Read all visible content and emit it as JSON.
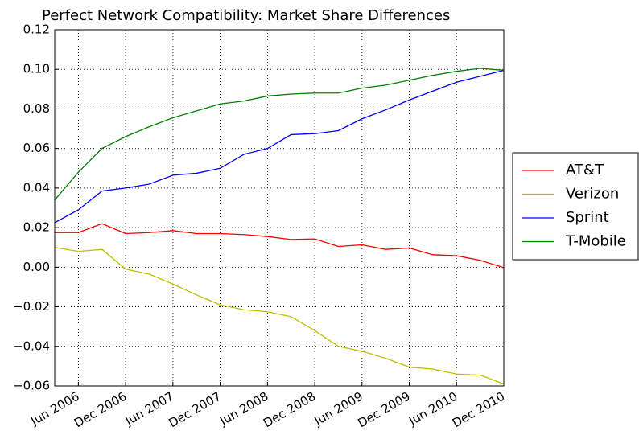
{
  "chart_data": {
    "type": "line",
    "title": "Perfect Network Compatibility: Market Share Differences",
    "x": [
      "2006-03",
      "2006-06",
      "2006-09",
      "2006-12",
      "2007-03",
      "2007-06",
      "2007-09",
      "2007-12",
      "2008-03",
      "2008-06",
      "2008-09",
      "2008-12",
      "2009-03",
      "2009-06",
      "2009-09",
      "2009-12",
      "2010-03",
      "2010-06",
      "2010-09",
      "2010-12"
    ],
    "xlim": [
      "2006-03",
      "2010-12"
    ],
    "xticks": [
      {
        "value": "2006-06",
        "label": "Jun 2006"
      },
      {
        "value": "2006-12",
        "label": "Dec 2006"
      },
      {
        "value": "2007-06",
        "label": "Jun 2007"
      },
      {
        "value": "2007-12",
        "label": "Dec 2007"
      },
      {
        "value": "2008-06",
        "label": "Jun 2008"
      },
      {
        "value": "2008-12",
        "label": "Dec 2008"
      },
      {
        "value": "2009-06",
        "label": "Jun 2009"
      },
      {
        "value": "2009-12",
        "label": "Dec 2009"
      },
      {
        "value": "2010-06",
        "label": "Jun 2010"
      },
      {
        "value": "2010-12",
        "label": "Dec 2010"
      }
    ],
    "ylim": [
      -0.06,
      0.12
    ],
    "yticks": [
      {
        "value": -0.06,
        "label": "−0.06"
      },
      {
        "value": -0.04,
        "label": "−0.04"
      },
      {
        "value": -0.02,
        "label": "−0.02"
      },
      {
        "value": 0,
        "label": "0.00"
      },
      {
        "value": 0.02,
        "label": "0.02"
      },
      {
        "value": 0.04,
        "label": "0.04"
      },
      {
        "value": 0.06,
        "label": "0.06"
      },
      {
        "value": 0.08,
        "label": "0.08"
      },
      {
        "value": 0.1,
        "label": "0.10"
      },
      {
        "value": 0.12,
        "label": "0.12"
      }
    ],
    "grid": true,
    "legend": "outside right",
    "series": [
      {
        "name": "AT&T",
        "color": "#ff0000",
        "values": [
          0.0175,
          0.0175,
          0.022,
          0.017,
          0.0175,
          0.0185,
          0.017,
          0.017,
          0.0165,
          0.0155,
          0.014,
          0.0143,
          0.0105,
          0.0113,
          0.009,
          0.0097,
          0.0063,
          0.0058,
          0.0035,
          -0.0002
        ]
      },
      {
        "name": "Verizon",
        "color": "#bfbf00",
        "values": [
          0.01,
          0.008,
          0.009,
          -0.001,
          -0.0035,
          -0.0085,
          -0.014,
          -0.019,
          -0.0215,
          -0.0225,
          -0.025,
          -0.032,
          -0.04,
          -0.0425,
          -0.046,
          -0.0505,
          -0.0515,
          -0.054,
          -0.0545,
          -0.059
        ]
      },
      {
        "name": "Sprint",
        "color": "#0000ff",
        "values": [
          0.0225,
          0.029,
          0.0385,
          0.04,
          0.042,
          0.0465,
          0.0475,
          0.05,
          0.057,
          0.06,
          0.067,
          0.0675,
          0.069,
          0.075,
          0.0795,
          0.0845,
          0.089,
          0.0935,
          0.0965,
          0.0995
        ]
      },
      {
        "name": "T-Mobile",
        "color": "#008000",
        "values": [
          0.034,
          0.048,
          0.06,
          0.066,
          0.071,
          0.0755,
          0.079,
          0.0825,
          0.084,
          0.0865,
          0.0875,
          0.088,
          0.088,
          0.0905,
          0.092,
          0.0945,
          0.097,
          0.099,
          0.1005,
          0.0995
        ]
      }
    ]
  }
}
